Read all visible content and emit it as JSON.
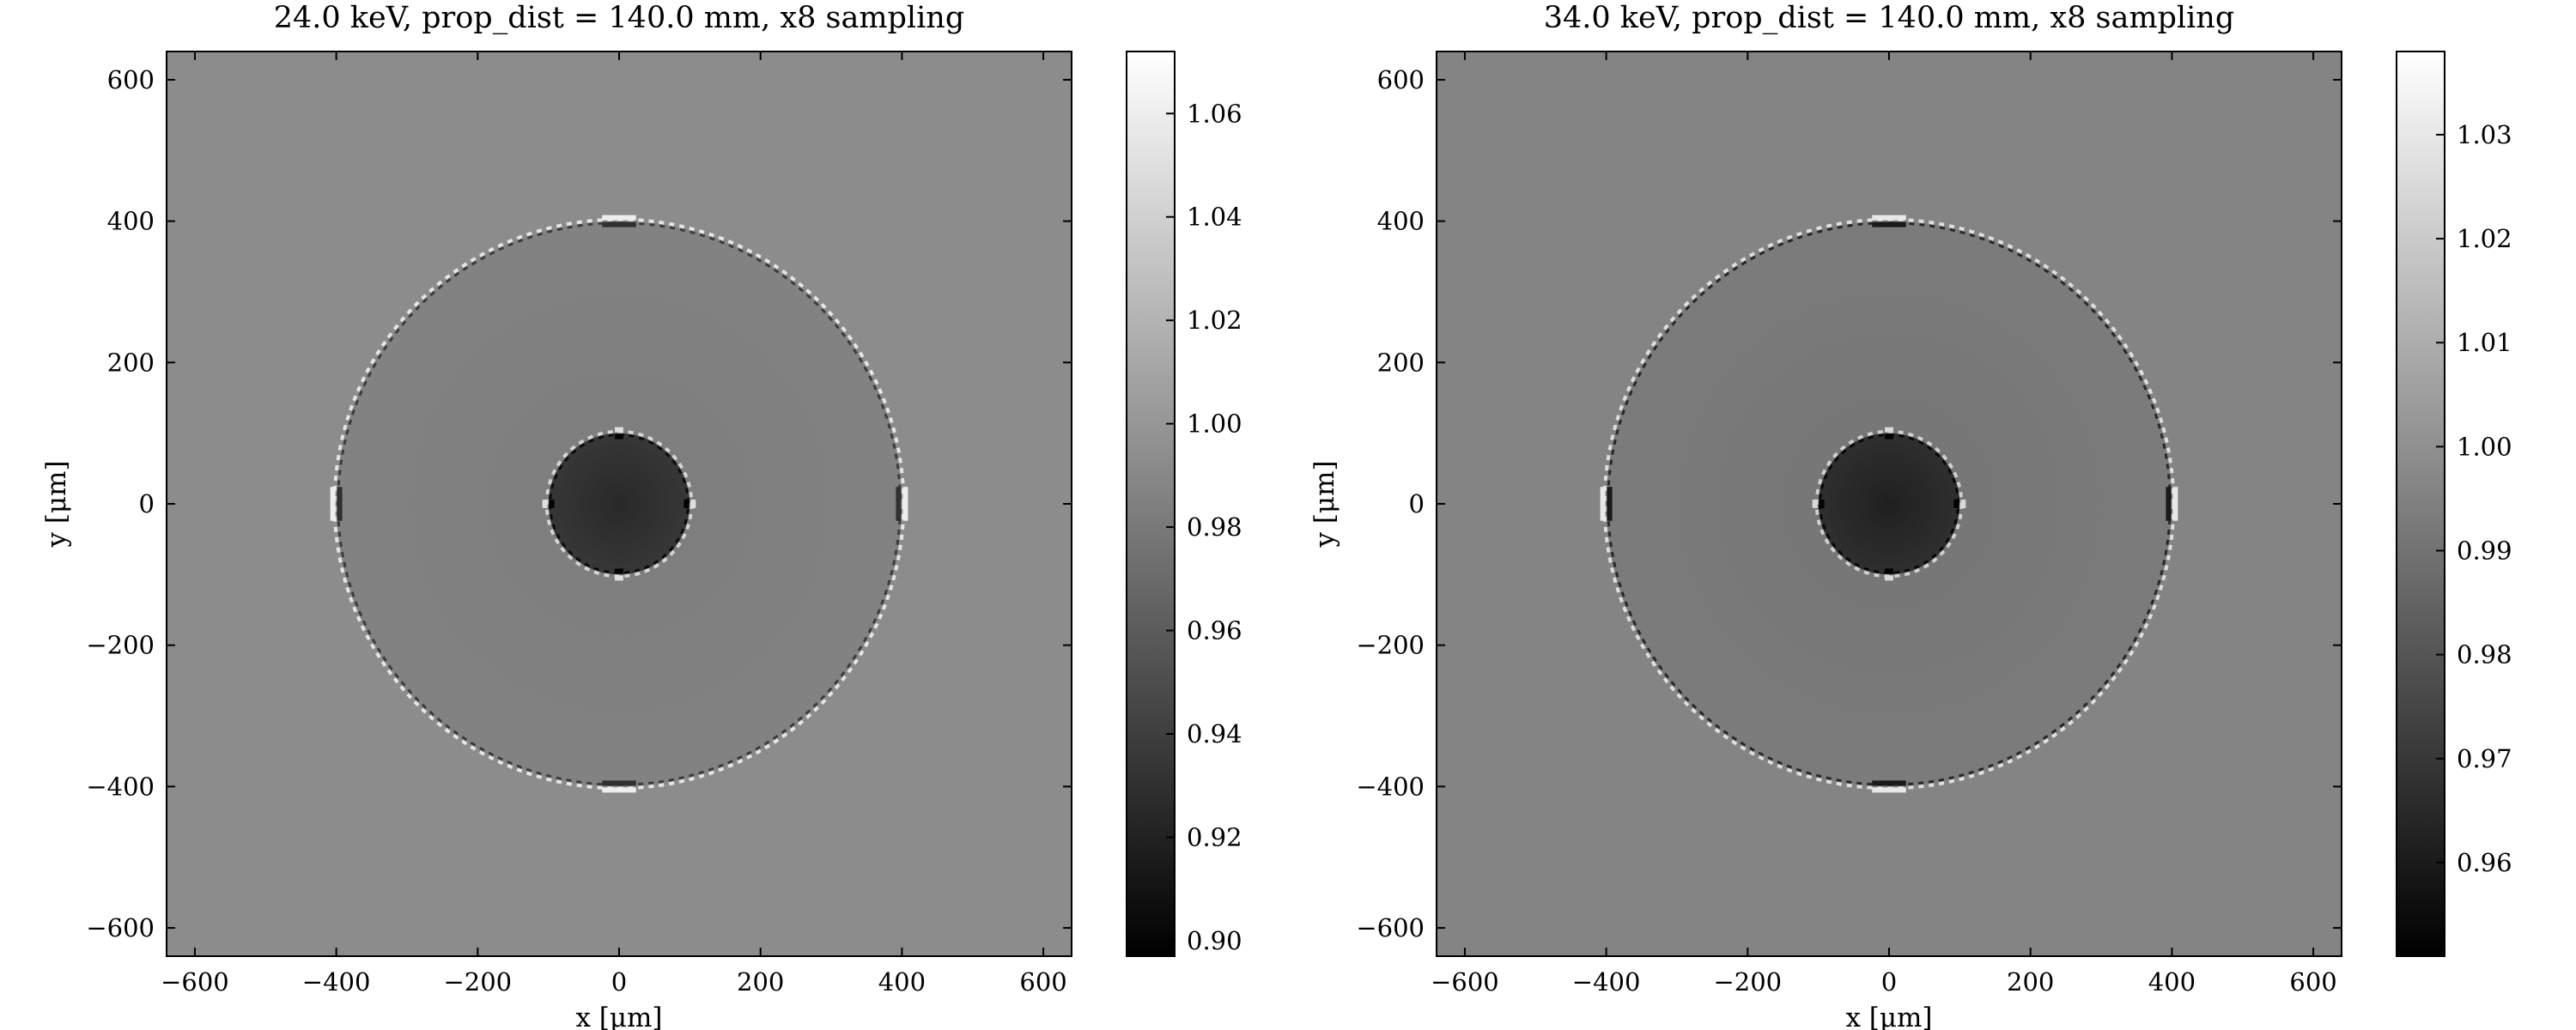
{
  "figure": {
    "panels": [
      {
        "title": "24.0 keV, prop_dist = 140.0 mm, x8 sampling",
        "xlabel": "x [μm]",
        "ylabel": "y [μm]",
        "colorbar_ticks": [
          "1.06",
          "1.04",
          "1.02",
          "1.00",
          "0.98",
          "0.96",
          "0.94",
          "0.92",
          "0.90"
        ]
      },
      {
        "title": "34.0 keV, prop_dist = 140.0 mm, x8 sampling",
        "xlabel": "x [μm]",
        "ylabel": "y [μm]",
        "colorbar_ticks": [
          "1.03",
          "1.02",
          "1.01",
          "1.00",
          "0.99",
          "0.98",
          "0.97",
          "0.96"
        ]
      }
    ]
  },
  "chart_data": [
    {
      "type": "heatmap",
      "title": "24.0 keV, prop_dist = 140.0 mm, x8 sampling",
      "xlabel": "x [μm]",
      "ylabel": "y [μm]",
      "xlim": [
        -640,
        640
      ],
      "ylim": [
        -640,
        640
      ],
      "xticks": [
        -600,
        -400,
        -200,
        0,
        200,
        400,
        600
      ],
      "yticks": [
        600,
        400,
        200,
        0,
        -200,
        -400,
        -600
      ],
      "colormap": "gray",
      "colorbar": {
        "min": 0.897,
        "max": 1.072,
        "ticks": [
          1.06,
          1.04,
          1.02,
          1.0,
          0.98,
          0.96,
          0.94,
          0.92,
          0.9
        ]
      },
      "background_value": 0.993,
      "outer_disc": {
        "center": [
          0,
          0
        ],
        "radius": 400,
        "value_center": 0.983,
        "value_edge": 0.986,
        "edge_fringe_min": 0.93,
        "edge_fringe_max": 1.06
      },
      "inner_disc": {
        "center": [
          0,
          0
        ],
        "radius": 100,
        "value_center": 0.925,
        "value_edge": 0.935,
        "edge_fringe_min": 0.9,
        "edge_fringe_max": 1.05
      }
    },
    {
      "type": "heatmap",
      "title": "34.0 keV, prop_dist = 140.0 mm, x8 sampling",
      "xlabel": "x [μm]",
      "ylabel": "y [μm]",
      "xlim": [
        -640,
        640
      ],
      "ylim": [
        -640,
        640
      ],
      "xticks": [
        -600,
        -400,
        -200,
        0,
        200,
        400,
        600
      ],
      "yticks": [
        600,
        400,
        200,
        0,
        -200,
        -400,
        -600
      ],
      "colormap": "gray",
      "colorbar": {
        "min": 0.951,
        "max": 1.038,
        "ticks": [
          1.03,
          1.02,
          1.01,
          1.0,
          0.99,
          0.98,
          0.97,
          0.96
        ]
      },
      "background_value": 0.996,
      "outer_disc": {
        "center": [
          0,
          0
        ],
        "radius": 400,
        "value_center": 0.991,
        "value_edge": 0.993,
        "edge_fringe_min": 0.96,
        "edge_fringe_max": 1.03
      },
      "inner_disc": {
        "center": [
          0,
          0
        ],
        "radius": 100,
        "value_center": 0.962,
        "value_edge": 0.967,
        "edge_fringe_min": 0.951,
        "edge_fringe_max": 1.025
      }
    }
  ]
}
